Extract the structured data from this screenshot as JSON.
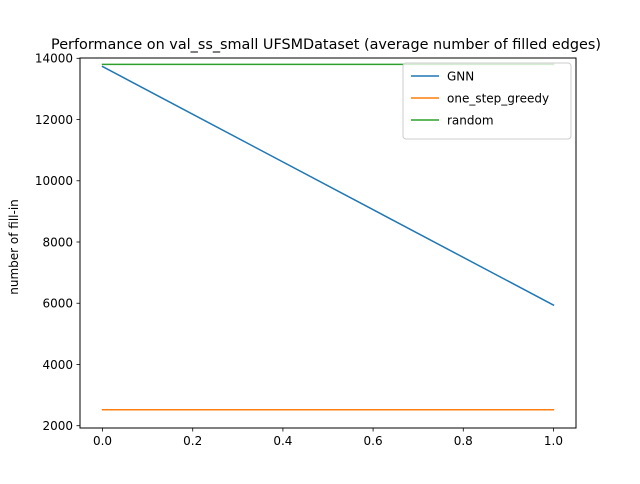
{
  "chart_data": {
    "type": "line",
    "title": "Performance on val_ss_small UFSMDataset (average number of filled edges)",
    "xlabel": "",
    "ylabel": "number of fill-in",
    "xlim": [
      -0.05,
      1.05
    ],
    "ylim": [
      1925,
      14010
    ],
    "xticks": [
      0.0,
      0.2,
      0.4,
      0.6,
      0.8,
      1.0
    ],
    "xtick_labels": [
      "0.0",
      "0.2",
      "0.4",
      "0.6",
      "0.8",
      "1.0"
    ],
    "yticks": [
      2000,
      4000,
      6000,
      8000,
      10000,
      12000,
      14000
    ],
    "ytick_labels": [
      "2000",
      "4000",
      "6000",
      "8000",
      "10000",
      "12000",
      "14000"
    ],
    "grid": false,
    "legend_position": "top-right",
    "series": [
      {
        "name": "GNN",
        "color": "#1f77b4",
        "x": [
          0,
          1
        ],
        "y": [
          13730,
          5940
        ]
      },
      {
        "name": "one_step_greedy",
        "color": "#ff7f0e",
        "x": [
          0,
          1
        ],
        "y": [
          2520,
          2520
        ]
      },
      {
        "name": "random",
        "color": "#2ca02c",
        "x": [
          0,
          1
        ],
        "y": [
          13800,
          13800
        ]
      }
    ]
  }
}
